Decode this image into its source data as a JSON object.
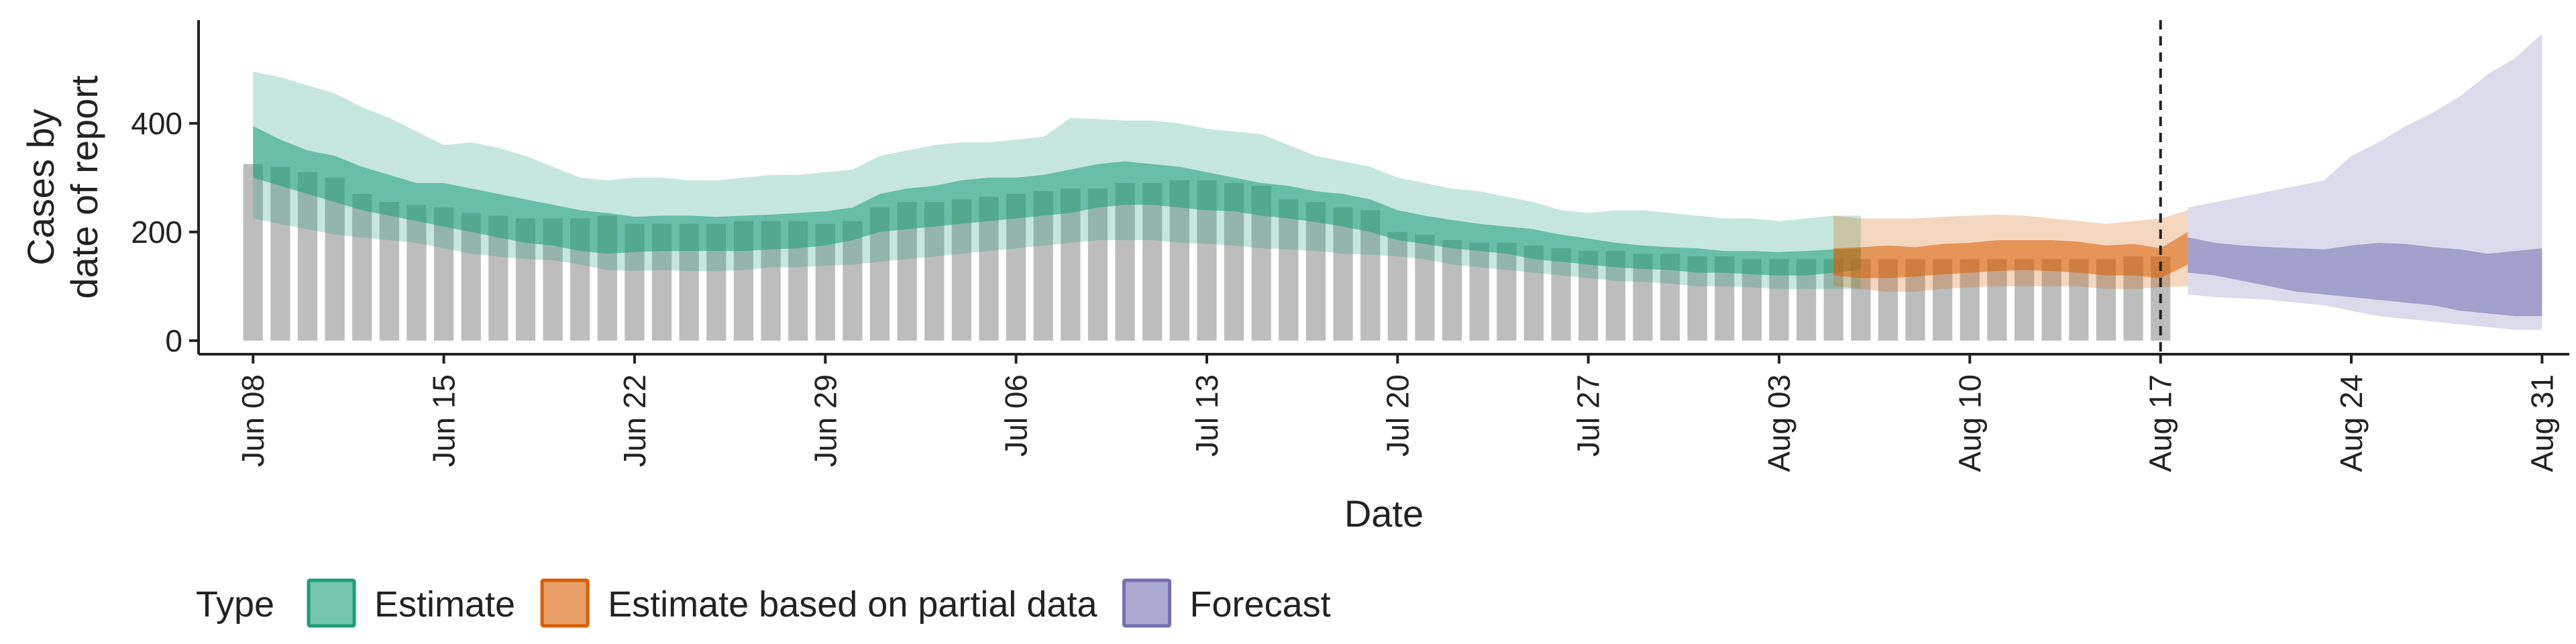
{
  "chart_data": {
    "type": "area",
    "xlabel": "Date",
    "ylabel": "Cases by date of report",
    "ylabel_lines": [
      "Cases by",
      "date of report"
    ],
    "x_range": [
      "2020-06-06",
      "2020-09-01"
    ],
    "ylim": [
      -25,
      590
    ],
    "y_ticks": [
      0,
      200,
      400
    ],
    "x_ticks": [
      {
        "date": "2020-06-08",
        "label": "Jun 08"
      },
      {
        "date": "2020-06-15",
        "label": "Jun 15"
      },
      {
        "date": "2020-06-22",
        "label": "Jun 22"
      },
      {
        "date": "2020-06-29",
        "label": "Jun 29"
      },
      {
        "date": "2020-07-06",
        "label": "Jul 06"
      },
      {
        "date": "2020-07-13",
        "label": "Jul 13"
      },
      {
        "date": "2020-07-20",
        "label": "Jul 20"
      },
      {
        "date": "2020-07-27",
        "label": "Jul 27"
      },
      {
        "date": "2020-08-03",
        "label": "Aug 03"
      },
      {
        "date": "2020-08-10",
        "label": "Aug 10"
      },
      {
        "date": "2020-08-17",
        "label": "Aug 17"
      },
      {
        "date": "2020-08-24",
        "label": "Aug 24"
      },
      {
        "date": "2020-08-31",
        "label": "Aug 31"
      }
    ],
    "forecast_date": "2020-08-17",
    "grid": false,
    "legend": {
      "title": "Type",
      "position": "bottom"
    },
    "colors": {
      "bars": "#bdbdbd",
      "Estimate": "#1b9e77",
      "Estimate based on partial data": "#d95f02",
      "Forecast": "#7570b3"
    },
    "reported_cases": {
      "start_date": "2020-06-08",
      "values": [
        325,
        320,
        310,
        300,
        270,
        255,
        250,
        245,
        235,
        230,
        225,
        225,
        225,
        230,
        215,
        215,
        215,
        215,
        220,
        220,
        220,
        215,
        220,
        245,
        255,
        255,
        260,
        265,
        270,
        275,
        280,
        280,
        290,
        290,
        295,
        295,
        290,
        285,
        260,
        255,
        245,
        240,
        200,
        195,
        185,
        180,
        180,
        175,
        170,
        165,
        165,
        160,
        160,
        155,
        155,
        150,
        150,
        150,
        150,
        150,
        150,
        150,
        150,
        150,
        150,
        150,
        150,
        150,
        150,
        155,
        155
      ]
    },
    "series": [
      {
        "name": "Estimate",
        "start_date": "2020-06-08",
        "outer_lower": [
          225,
          215,
          205,
          195,
          190,
          185,
          180,
          170,
          160,
          155,
          150,
          148,
          140,
          130,
          128,
          130,
          128,
          128,
          130,
          135,
          135,
          138,
          140,
          145,
          150,
          155,
          160,
          165,
          170,
          175,
          180,
          185,
          185,
          185,
          180,
          178,
          175,
          170,
          168,
          165,
          160,
          158,
          155,
          150,
          140,
          135,
          130,
          125,
          120,
          115,
          110,
          108,
          105,
          100,
          100,
          98,
          95,
          95,
          95,
          95
        ],
        "inner_lower": [
          300,
          285,
          270,
          255,
          240,
          230,
          220,
          210,
          200,
          190,
          180,
          175,
          165,
          160,
          163,
          165,
          165,
          165,
          165,
          168,
          170,
          175,
          185,
          200,
          205,
          210,
          215,
          220,
          225,
          230,
          235,
          245,
          250,
          250,
          245,
          240,
          238,
          230,
          225,
          218,
          210,
          200,
          185,
          178,
          170,
          165,
          160,
          150,
          145,
          140,
          135,
          132,
          130,
          125,
          125,
          122,
          120,
          120,
          125,
          130
        ],
        "inner_upper": [
          395,
          370,
          350,
          340,
          320,
          305,
          290,
          290,
          280,
          270,
          260,
          250,
          240,
          235,
          228,
          230,
          230,
          228,
          230,
          232,
          235,
          238,
          245,
          270,
          280,
          285,
          295,
          300,
          300,
          305,
          315,
          325,
          330,
          325,
          320,
          310,
          300,
          290,
          285,
          275,
          270,
          260,
          240,
          230,
          222,
          215,
          210,
          205,
          195,
          188,
          180,
          175,
          172,
          170,
          165,
          165,
          163,
          165,
          168,
          170
        ],
        "outer_upper": [
          495,
          485,
          470,
          455,
          430,
          410,
          385,
          360,
          365,
          355,
          340,
          320,
          300,
          295,
          300,
          300,
          295,
          295,
          300,
          305,
          305,
          310,
          315,
          340,
          350,
          360,
          365,
          365,
          370,
          375,
          410,
          408,
          405,
          405,
          400,
          390,
          385,
          380,
          360,
          340,
          330,
          320,
          300,
          290,
          280,
          275,
          265,
          255,
          240,
          235,
          240,
          240,
          235,
          230,
          225,
          225,
          220,
          225,
          230,
          230
        ]
      },
      {
        "name": "Estimate based on partial data",
        "start_date": "2020-08-05",
        "outer_lower": [
          100,
          95,
          90,
          90,
          95,
          98,
          100,
          100,
          100,
          100,
          95,
          95,
          98,
          100
        ],
        "inner_lower": [
          120,
          115,
          115,
          118,
          122,
          125,
          128,
          130,
          128,
          125,
          120,
          120,
          115,
          140
        ],
        "inner_upper": [
          170,
          172,
          175,
          172,
          178,
          180,
          185,
          185,
          185,
          182,
          175,
          178,
          170,
          200
        ],
        "outer_upper": [
          230,
          225,
          225,
          225,
          228,
          230,
          232,
          230,
          225,
          220,
          215,
          220,
          225,
          240
        ]
      },
      {
        "name": "Forecast",
        "start_date": "2020-08-18",
        "outer_lower": [
          85,
          80,
          78,
          75,
          70,
          65,
          55,
          45,
          40,
          35,
          30,
          25,
          20,
          20
        ],
        "inner_lower": [
          125,
          120,
          110,
          100,
          90,
          85,
          80,
          75,
          70,
          65,
          55,
          50,
          45,
          45
        ],
        "inner_upper": [
          190,
          180,
          175,
          172,
          170,
          168,
          175,
          180,
          178,
          172,
          168,
          160,
          165,
          170
        ],
        "outer_upper": [
          245,
          255,
          265,
          275,
          285,
          295,
          340,
          365,
          395,
          420,
          450,
          490,
          520,
          565
        ]
      }
    ]
  }
}
